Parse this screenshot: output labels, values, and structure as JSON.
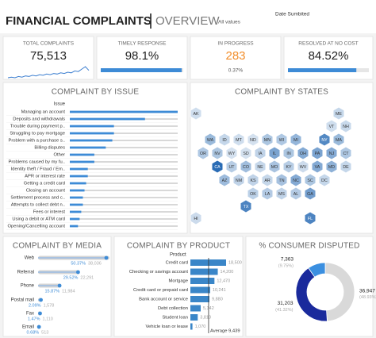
{
  "header": {
    "title": "FINANCIAL COMPLAINTS",
    "subtitle": "OVERVIEW",
    "filter": "All values",
    "date_label": "Date Sumbited"
  },
  "kpis": [
    {
      "label": "TOTAL COMPLAINTS",
      "value": 75513,
      "value_label": "75,513",
      "sparkline": [
        8,
        9,
        8,
        10,
        9,
        11,
        10,
        12,
        11,
        13,
        12,
        14,
        13,
        15,
        14,
        16,
        15,
        17,
        16,
        19,
        18,
        22,
        26,
        20
      ]
    },
    {
      "label": "TIMELY RESPONSE",
      "value": 98.1,
      "value_label": "98.1%",
      "xlim": [
        0,
        100
      ]
    },
    {
      "label": "IN PROGRESS",
      "value": 283,
      "value_label": "283",
      "share": 0.37,
      "share_label": "0.37%"
    },
    {
      "label": "RESOLVED AT NO COST",
      "value": 84.52,
      "value_label": "84.52%",
      "xlim": [
        0,
        100
      ]
    }
  ],
  "chart_data": [
    {
      "type": "bar",
      "title": "COMPLAINT BY ISSUE",
      "category_label": "Issue",
      "color": "#3d8bd6",
      "categories": [
        "Managing an account",
        "Deposits and withdrawals",
        "Trouble during payment p..",
        "Struggling to pay mortgage",
        "Problem with a purchase s..",
        "Billing disputes",
        "Other",
        "Problems caused by my fu..",
        "Identity theft / Fraud / Em..",
        "APR or interest rate",
        "Getting a credit card",
        "Closing an account",
        "Settlement process and c..",
        "Attempts to collect debt n..",
        "Fees or interest",
        "Using a debit or ATM card",
        "Opening/Cancelling account"
      ],
      "values": [
        13200,
        9200,
        5400,
        5400,
        5200,
        4400,
        3000,
        3000,
        2200,
        2200,
        2000,
        1800,
        1600,
        1600,
        1400,
        1200,
        1000
      ]
    },
    {
      "type": "map",
      "title": "COMPLAINT BY STATES",
      "color": "#2a6cb5",
      "states": [
        "AK",
        "ME",
        "VT",
        "NH",
        "WA",
        "ID",
        "MT",
        "ND",
        "MN",
        "WI",
        "MI",
        "NY",
        "MA",
        "OR",
        "NV",
        "WY",
        "SD",
        "IA",
        "IL",
        "IN",
        "OH",
        "PA",
        "NJ",
        "CT",
        "CA",
        "UT",
        "CO",
        "NE",
        "MO",
        "KY",
        "WV",
        "VA",
        "MD",
        "DE",
        "AZ",
        "NM",
        "KS",
        "AR",
        "TN",
        "NC",
        "SC",
        "DC",
        "OK",
        "LA",
        "MS",
        "AL",
        "GA",
        "HI",
        "TX",
        "FL"
      ],
      "values": [
        150,
        300,
        150,
        250,
        1500,
        300,
        150,
        100,
        900,
        800,
        1700,
        5500,
        1500,
        800,
        900,
        100,
        100,
        400,
        3000,
        900,
        2500,
        3000,
        2500,
        800,
        9000,
        600,
        1300,
        300,
        1000,
        600,
        200,
        2500,
        2000,
        300,
        1400,
        400,
        400,
        300,
        1100,
        2500,
        900,
        300,
        500,
        700,
        400,
        700,
        3500,
        200,
        6000,
        6000
      ]
    },
    {
      "type": "bar",
      "title": "COMPLAINT BY MEDIA",
      "color": "#3d8bd6",
      "categories": [
        "Web",
        "Referral",
        "Phone",
        "Postal mail",
        "Fax",
        "Email"
      ],
      "values": [
        50.37,
        29.52,
        15.87,
        2.09,
        1.47,
        0.68
      ],
      "value_labels": [
        "50.37%",
        "29.52%",
        "15.87%",
        "2.09%",
        "1.47%",
        "0.68%"
      ],
      "counts": [
        38036,
        22291,
        11984,
        1578,
        1110,
        513
      ],
      "count_labels": [
        "38,036",
        "22,291",
        "11,984",
        "1,578",
        "1,110",
        "513"
      ]
    },
    {
      "type": "bar",
      "title": "COMPLAINT BY PRODUCT",
      "category_label": "Product",
      "color": "#3a86c8",
      "categories": [
        "Credit card",
        "Checking or savings account",
        "Mortgage",
        "Credit card or prepaid card",
        "Bank account or service",
        "Debt collection",
        "Student loan",
        "Vehicle loan or lease"
      ],
      "values": [
        18500,
        14200,
        12470,
        10241,
        9880,
        5342,
        3810,
        1070
      ],
      "value_labels": [
        "18,500",
        "14,200",
        "12,470",
        "10,241",
        "9,880",
        "5,342",
        "3,810",
        "1,070"
      ],
      "average": {
        "value": 9439,
        "label": "Average 9,439"
      }
    },
    {
      "type": "pie",
      "title": "% CONSUMER DISPUTED",
      "values": [
        36947,
        31203,
        7363
      ],
      "value_labels": [
        "36,947",
        "31,203",
        "7,363"
      ],
      "shares": [
        48.93,
        41.32,
        9.75
      ],
      "share_labels": [
        "(48.93%)",
        "(41.32%)",
        "(9.75%)"
      ],
      "colors": [
        "#d9d9d9",
        "#1a2a9c",
        "#3b8fe0"
      ]
    }
  ]
}
